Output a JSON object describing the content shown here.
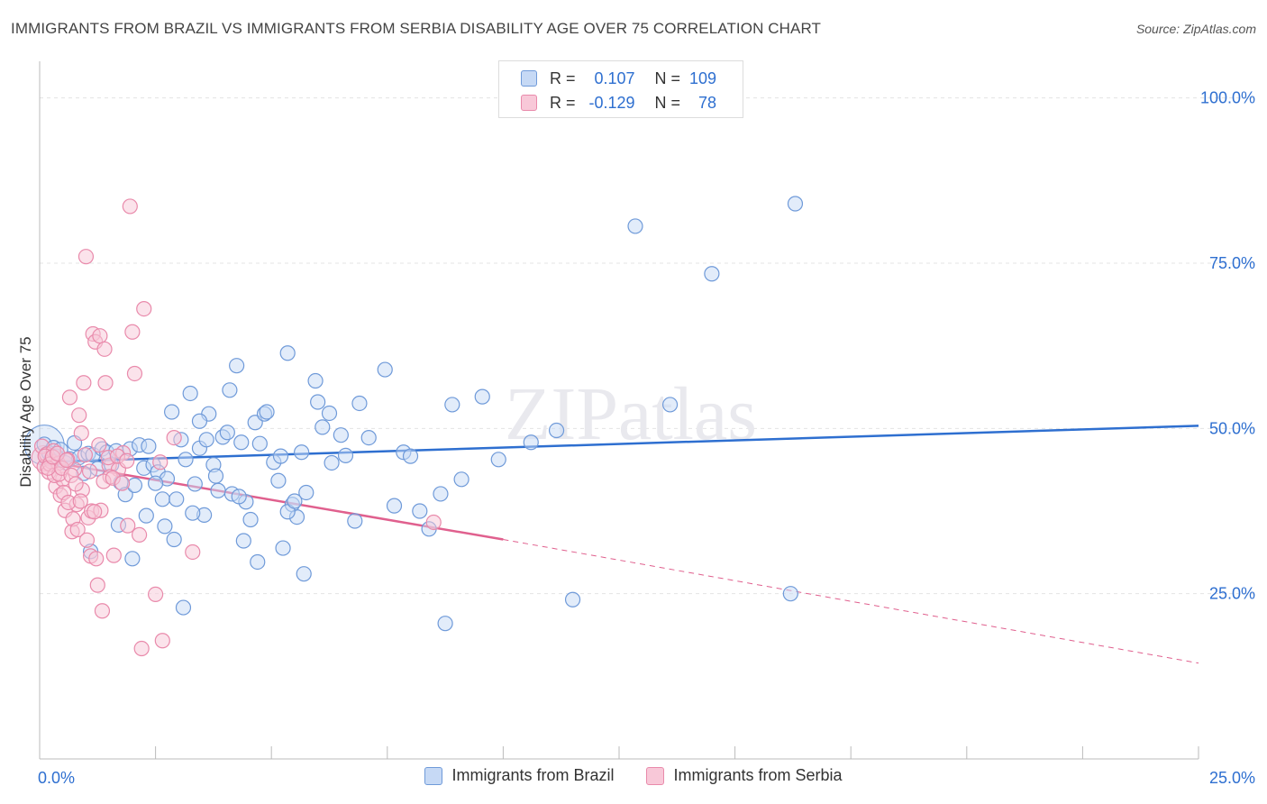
{
  "title": "IMMIGRANTS FROM BRAZIL VS IMMIGRANTS FROM SERBIA DISABILITY AGE OVER 75 CORRELATION CHART",
  "source": "Source: ZipAtlas.com",
  "watermark": "ZIPatlas",
  "stats": {
    "r_label": "R =",
    "n_label": "N =",
    "blue": {
      "r": "0.107",
      "n": "109"
    },
    "pink": {
      "r": "-0.129",
      "n": "78"
    }
  },
  "legend": {
    "brazil": "Immigrants from Brazil",
    "serbia": "Immigrants from Serbia"
  },
  "colors": {
    "blue": "#2e6fd0",
    "pink": "#e0608e",
    "blue_fill": "#c6d9f5",
    "pink_fill": "#f8c8d8"
  },
  "chart_data": {
    "type": "scatter",
    "title": "IMMIGRANTS FROM BRAZIL VS IMMIGRANTS FROM SERBIA DISABILITY AGE OVER 75 CORRELATION CHART",
    "xlabel": "",
    "ylabel": "Disability Age Over 75",
    "xlim": [
      0,
      25
    ],
    "ylim": [
      0,
      105
    ],
    "x_tick_labels": [
      "0.0%",
      "25.0%"
    ],
    "y_ticks": [
      25,
      50,
      75,
      100
    ],
    "y_tick_labels": [
      "25.0%",
      "50.0%",
      "75.0%",
      "100.0%"
    ],
    "series": [
      {
        "name": "Immigrants from Brazil",
        "color": "#2e6fd0",
        "trend": {
          "x0": 0,
          "y0": 44.9,
          "x1": 25,
          "y1": 50.4
        },
        "points": [
          [
            0.1,
            47.6
          ],
          [
            0.2,
            46.3
          ],
          [
            0.25,
            45.3
          ],
          [
            0.3,
            47.1
          ],
          [
            0.35,
            45.8
          ],
          [
            0.45,
            46.8
          ],
          [
            0.55,
            44.8
          ],
          [
            0.65,
            45.4
          ],
          [
            0.75,
            47.8
          ],
          [
            0.85,
            45.6
          ],
          [
            0.95,
            43.2
          ],
          [
            1.05,
            46.2
          ],
          [
            1.15,
            46.0
          ],
          [
            1.25,
            43.9
          ],
          [
            1.35,
            46.9
          ],
          [
            1.45,
            46.4
          ],
          [
            1.55,
            44.5
          ],
          [
            1.65,
            46.6
          ],
          [
            1.75,
            41.8
          ],
          [
            1.85,
            40.0
          ],
          [
            1.95,
            46.9
          ],
          [
            2.05,
            41.4
          ],
          [
            2.15,
            47.5
          ],
          [
            2.25,
            44.0
          ],
          [
            2.35,
            47.3
          ],
          [
            2.45,
            44.5
          ],
          [
            2.55,
            43.4
          ],
          [
            2.65,
            39.3
          ],
          [
            2.75,
            42.4
          ],
          [
            2.85,
            52.5
          ],
          [
            2.95,
            39.3
          ],
          [
            3.05,
            48.3
          ],
          [
            3.15,
            45.3
          ],
          [
            3.25,
            55.3
          ],
          [
            3.35,
            41.6
          ],
          [
            3.45,
            47.0
          ],
          [
            3.55,
            36.9
          ],
          [
            3.65,
            52.2
          ],
          [
            3.75,
            44.5
          ],
          [
            3.85,
            40.6
          ],
          [
            3.95,
            48.7
          ],
          [
            4.1,
            55.8
          ],
          [
            4.15,
            40.1
          ],
          [
            4.25,
            59.5
          ],
          [
            4.35,
            47.9
          ],
          [
            4.45,
            38.9
          ],
          [
            4.55,
            36.2
          ],
          [
            4.65,
            50.9
          ],
          [
            4.75,
            47.7
          ],
          [
            4.85,
            52.2
          ],
          [
            5.05,
            44.9
          ],
          [
            5.15,
            42.1
          ],
          [
            5.25,
            31.9
          ],
          [
            5.35,
            61.4
          ],
          [
            5.45,
            38.5
          ],
          [
            5.55,
            36.6
          ],
          [
            5.65,
            46.4
          ],
          [
            5.75,
            40.3
          ],
          [
            5.95,
            57.2
          ],
          [
            6.1,
            50.2
          ],
          [
            6.25,
            52.3
          ],
          [
            6.5,
            49.0
          ],
          [
            6.9,
            53.8
          ],
          [
            7.45,
            58.9
          ],
          [
            7.65,
            38.3
          ],
          [
            7.85,
            46.4
          ],
          [
            8.0,
            45.8
          ],
          [
            8.4,
            34.8
          ],
          [
            8.65,
            40.1
          ],
          [
            8.9,
            53.6
          ],
          [
            9.1,
            42.3
          ],
          [
            9.55,
            54.8
          ],
          [
            10.6,
            47.9
          ],
          [
            11.15,
            49.7
          ],
          [
            11.5,
            24.1
          ],
          [
            12.85,
            80.6
          ],
          [
            13.6,
            53.6
          ],
          [
            16.2,
            25.0
          ],
          [
            16.3,
            84.0
          ],
          [
            14.5,
            73.4
          ],
          [
            1.1,
            31.4
          ],
          [
            1.7,
            35.4
          ],
          [
            2.0,
            30.3
          ],
          [
            2.3,
            36.8
          ],
          [
            2.5,
            41.7
          ],
          [
            2.7,
            35.2
          ],
          [
            2.9,
            33.2
          ],
          [
            3.1,
            22.9
          ],
          [
            3.3,
            37.2
          ],
          [
            3.45,
            51.1
          ],
          [
            3.6,
            48.3
          ],
          [
            3.8,
            42.8
          ],
          [
            4.05,
            49.4
          ],
          [
            4.3,
            39.7
          ],
          [
            4.4,
            33.0
          ],
          [
            4.7,
            29.8
          ],
          [
            4.9,
            52.5
          ],
          [
            5.2,
            45.8
          ],
          [
            5.35,
            37.4
          ],
          [
            5.5,
            39.0
          ],
          [
            5.7,
            28.0
          ],
          [
            6.0,
            54.0
          ],
          [
            6.3,
            44.8
          ],
          [
            6.6,
            45.9
          ],
          [
            6.8,
            36.0
          ],
          [
            7.1,
            48.6
          ],
          [
            8.2,
            37.5
          ],
          [
            8.75,
            20.5
          ],
          [
            9.9,
            45.3
          ]
        ]
      },
      {
        "name": "Immigrants from Serbia",
        "color": "#e0608e",
        "trend": {
          "x0": 0,
          "y0": 45.2,
          "x1": 10,
          "y1": 33.2,
          "dashed_to": {
            "x": 25,
            "y": 14.5
          }
        },
        "points": [
          [
            0.05,
            47.3
          ],
          [
            0.1,
            44.2
          ],
          [
            0.15,
            46.1
          ],
          [
            0.2,
            43.4
          ],
          [
            0.25,
            45.0
          ],
          [
            0.3,
            46.6
          ],
          [
            0.35,
            41.2
          ],
          [
            0.4,
            44.7
          ],
          [
            0.45,
            39.9
          ],
          [
            0.5,
            42.3
          ],
          [
            0.55,
            37.6
          ],
          [
            0.6,
            45.3
          ],
          [
            0.65,
            54.7
          ],
          [
            0.7,
            34.4
          ],
          [
            0.75,
            43.8
          ],
          [
            0.8,
            38.5
          ],
          [
            0.85,
            52.0
          ],
          [
            0.9,
            49.3
          ],
          [
            0.95,
            56.9
          ],
          [
            1.0,
            76.0
          ],
          [
            1.05,
            36.5
          ],
          [
            1.1,
            30.7
          ],
          [
            1.15,
            64.3
          ],
          [
            1.2,
            63.1
          ],
          [
            1.25,
            26.3
          ],
          [
            1.3,
            64.0
          ],
          [
            1.35,
            22.4
          ],
          [
            1.4,
            62.0
          ],
          [
            1.5,
            44.4
          ],
          [
            1.6,
            30.8
          ],
          [
            1.7,
            43.8
          ],
          [
            1.8,
            46.3
          ],
          [
            1.9,
            35.3
          ],
          [
            1.95,
            83.6
          ],
          [
            2.0,
            64.6
          ],
          [
            2.05,
            58.3
          ],
          [
            2.15,
            33.9
          ],
          [
            2.2,
            16.7
          ],
          [
            2.25,
            68.1
          ],
          [
            2.5,
            24.9
          ],
          [
            2.6,
            44.9
          ],
          [
            2.65,
            17.9
          ],
          [
            2.9,
            48.6
          ],
          [
            3.3,
            31.3
          ],
          [
            8.5,
            35.8
          ],
          [
            0.12,
            45.8
          ],
          [
            0.22,
            44.6
          ],
          [
            0.32,
            42.9
          ],
          [
            0.42,
            43.1
          ],
          [
            0.52,
            40.3
          ],
          [
            0.62,
            38.8
          ],
          [
            0.72,
            36.3
          ],
          [
            0.82,
            34.7
          ],
          [
            0.92,
            40.7
          ],
          [
            1.02,
            33.1
          ],
          [
            1.12,
            37.5
          ],
          [
            1.22,
            30.3
          ],
          [
            1.32,
            37.6
          ],
          [
            1.42,
            56.9
          ],
          [
            1.52,
            42.7
          ],
          [
            0.18,
            44.0
          ],
          [
            0.28,
            45.7
          ],
          [
            0.38,
            46.2
          ],
          [
            0.48,
            44.0
          ],
          [
            0.58,
            45.2
          ],
          [
            0.68,
            42.9
          ],
          [
            0.78,
            41.6
          ],
          [
            0.88,
            39.0
          ],
          [
            0.98,
            46.0
          ],
          [
            1.08,
            43.5
          ],
          [
            1.18,
            37.4
          ],
          [
            1.28,
            47.5
          ],
          [
            1.38,
            42.0
          ],
          [
            1.48,
            45.6
          ],
          [
            1.58,
            42.5
          ],
          [
            1.68,
            45.8
          ],
          [
            1.78,
            41.7
          ],
          [
            1.88,
            45.1
          ]
        ]
      }
    ]
  }
}
